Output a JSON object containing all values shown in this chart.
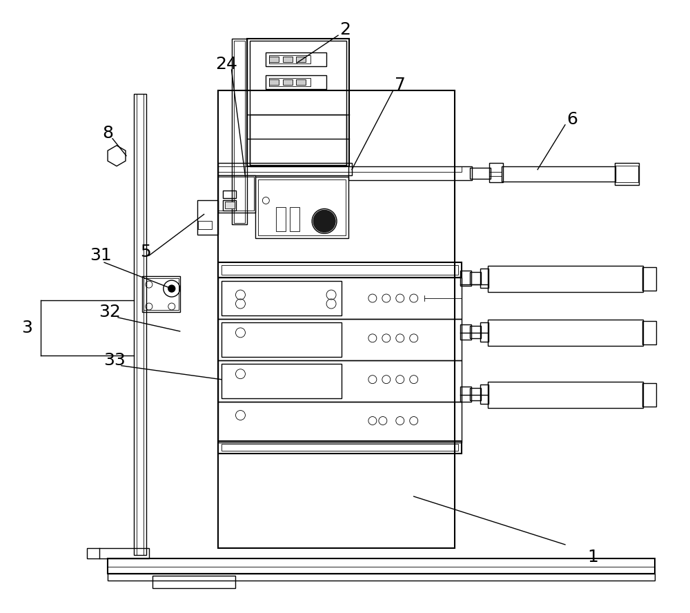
{
  "bg_color": "#ffffff",
  "line_color": "#000000",
  "lw": 1.0,
  "tlw": 0.6,
  "thk": 1.5,
  "fig_width": 10.0,
  "fig_height": 8.88
}
